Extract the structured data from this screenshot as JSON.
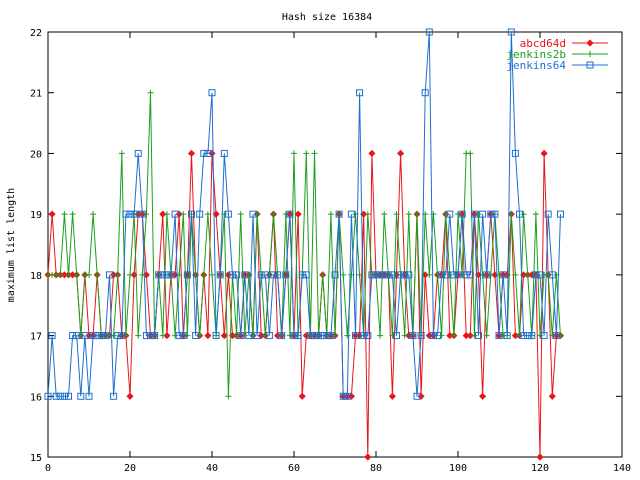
{
  "chart_data": {
    "type": "line",
    "title": "Hash size 16384",
    "xlabel": "",
    "ylabel": "maximum list length",
    "xlim": [
      0,
      140
    ],
    "ylim": [
      15,
      22
    ],
    "xticks": [
      0,
      20,
      40,
      60,
      80,
      100,
      120,
      140
    ],
    "yticks": [
      15,
      16,
      17,
      18,
      19,
      20,
      21,
      22
    ],
    "grid": false,
    "legend_position": "top-right",
    "series": [
      {
        "name": "abcd64d",
        "color": "#e8151b",
        "marker": "diamond",
        "x": [
          0,
          1,
          2,
          3,
          4,
          5,
          6,
          7,
          8,
          9,
          10,
          11,
          12,
          13,
          14,
          15,
          16,
          17,
          18,
          19,
          20,
          21,
          22,
          23,
          24,
          25,
          26,
          27,
          28,
          29,
          30,
          31,
          32,
          33,
          34,
          35,
          36,
          37,
          38,
          39,
          40,
          41,
          42,
          43,
          44,
          45,
          46,
          47,
          48,
          49,
          50,
          51,
          52,
          53,
          54,
          55,
          56,
          57,
          58,
          59,
          60,
          61,
          62,
          63,
          64,
          65,
          66,
          67,
          68,
          69,
          70,
          71,
          72,
          73,
          74,
          75,
          76,
          77,
          78,
          79,
          80,
          81,
          82,
          83,
          84,
          85,
          86,
          87,
          88,
          89,
          90,
          91,
          92,
          93,
          94,
          95,
          96,
          97,
          98,
          99,
          100,
          101,
          102,
          103,
          104,
          105,
          106,
          107,
          108,
          109,
          110,
          111,
          112,
          113,
          114,
          115,
          116,
          117,
          118,
          119,
          120,
          121,
          122,
          123,
          124,
          125
        ],
        "y": [
          18,
          19,
          18,
          18,
          18,
          18,
          18,
          18,
          17,
          18,
          17,
          17,
          18,
          17,
          17,
          17,
          18,
          18,
          17,
          17,
          16,
          18,
          19,
          19,
          18,
          17,
          17,
          18,
          19,
          17,
          18,
          18,
          19,
          17,
          18,
          20,
          18,
          17,
          18,
          17,
          20,
          19,
          18,
          17,
          18,
          17,
          17,
          17,
          18,
          18,
          17,
          19,
          17,
          17,
          18,
          19,
          17,
          17,
          18,
          19,
          17,
          19,
          16,
          17,
          17,
          17,
          17,
          18,
          17,
          17,
          17,
          19,
          16,
          16,
          16,
          17,
          17,
          19,
          15,
          20,
          18,
          18,
          18,
          18,
          16,
          18,
          20,
          18,
          17,
          17,
          19,
          16,
          18,
          17,
          17,
          18,
          18,
          19,
          17,
          17,
          18,
          19,
          17,
          17,
          19,
          18,
          16,
          18,
          19,
          18,
          17,
          18,
          18,
          19,
          17,
          17,
          18,
          18,
          18,
          18,
          15,
          20,
          18,
          16,
          17,
          17
        ]
      },
      {
        "name": "jenkins2b",
        "color": "#1b9e1b",
        "marker": "plus",
        "x": [
          0,
          1,
          2,
          3,
          4,
          5,
          6,
          7,
          8,
          9,
          10,
          11,
          12,
          13,
          14,
          15,
          16,
          17,
          18,
          19,
          20,
          21,
          22,
          23,
          24,
          25,
          26,
          27,
          28,
          29,
          30,
          31,
          32,
          33,
          34,
          35,
          36,
          37,
          38,
          39,
          40,
          41,
          42,
          43,
          44,
          45,
          46,
          47,
          48,
          49,
          50,
          51,
          52,
          53,
          54,
          55,
          56,
          57,
          58,
          59,
          60,
          61,
          62,
          63,
          64,
          65,
          66,
          67,
          68,
          69,
          70,
          71,
          72,
          73,
          74,
          75,
          76,
          77,
          78,
          79,
          80,
          81,
          82,
          83,
          84,
          85,
          86,
          87,
          88,
          89,
          90,
          91,
          92,
          93,
          94,
          95,
          96,
          97,
          98,
          99,
          100,
          101,
          102,
          103,
          104,
          105,
          106,
          107,
          108,
          109,
          110,
          111,
          112,
          113,
          114,
          115,
          116,
          117,
          118,
          119,
          120,
          121,
          122,
          123,
          124,
          125
        ],
        "y": [
          18,
          18,
          18,
          18,
          19,
          18,
          19,
          18,
          17,
          18,
          18,
          19,
          18,
          17,
          17,
          17,
          17,
          18,
          20,
          17,
          18,
          19,
          17,
          18,
          19,
          21,
          17,
          18,
          17,
          19,
          18,
          17,
          18,
          19,
          17,
          19,
          18,
          17,
          18,
          19,
          18,
          17,
          18,
          19,
          16,
          18,
          17,
          19,
          17,
          18,
          17,
          19,
          18,
          17,
          18,
          19,
          18,
          17,
          19,
          17,
          20,
          17,
          18,
          20,
          17,
          20,
          17,
          18,
          17,
          19,
          17,
          19,
          18,
          17,
          18,
          19,
          18,
          17,
          19,
          18,
          18,
          17,
          19,
          18,
          17,
          19,
          18,
          17,
          19,
          17,
          19,
          17,
          19,
          18,
          19,
          18,
          17,
          19,
          18,
          17,
          19,
          18,
          20,
          20,
          17,
          19,
          18,
          17,
          18,
          19,
          18,
          17,
          17,
          19,
          18,
          17,
          19,
          18,
          17,
          19,
          17,
          18,
          18,
          17,
          18,
          17
        ]
      },
      {
        "name": "jenkins64",
        "color": "#1f6fd1",
        "marker": "square",
        "x": [
          0,
          1,
          2,
          3,
          4,
          5,
          6,
          7,
          8,
          9,
          10,
          11,
          12,
          13,
          14,
          15,
          16,
          17,
          18,
          19,
          20,
          21,
          22,
          23,
          24,
          25,
          26,
          27,
          28,
          29,
          30,
          31,
          32,
          33,
          34,
          35,
          36,
          37,
          38,
          39,
          40,
          41,
          42,
          43,
          44,
          45,
          46,
          47,
          48,
          49,
          50,
          51,
          52,
          53,
          54,
          55,
          56,
          57,
          58,
          59,
          60,
          61,
          62,
          63,
          64,
          65,
          66,
          67,
          68,
          69,
          70,
          71,
          72,
          73,
          74,
          75,
          76,
          77,
          78,
          79,
          80,
          81,
          82,
          83,
          84,
          85,
          86,
          87,
          88,
          89,
          90,
          91,
          92,
          93,
          94,
          95,
          96,
          97,
          98,
          99,
          100,
          101,
          102,
          103,
          104,
          105,
          106,
          107,
          108,
          109,
          110,
          111,
          112,
          113,
          114,
          115,
          116,
          117,
          118,
          119,
          120,
          121,
          122,
          123,
          124,
          125
        ],
        "y": [
          16,
          17,
          16,
          16,
          16,
          16,
          17,
          17,
          16,
          17,
          16,
          17,
          17,
          17,
          17,
          18,
          16,
          17,
          17,
          19,
          19,
          19,
          20,
          19,
          17,
          17,
          17,
          18,
          18,
          18,
          18,
          19,
          17,
          17,
          18,
          19,
          17,
          19,
          20,
          20,
          21,
          17,
          18,
          20,
          19,
          18,
          18,
          17,
          18,
          17,
          19,
          17,
          18,
          18,
          17,
          18,
          18,
          17,
          18,
          19,
          17,
          17,
          18,
          18,
          17,
          17,
          17,
          17,
          17,
          17,
          18,
          19,
          16,
          16,
          19,
          17,
          21,
          17,
          17,
          18,
          18,
          18,
          18,
          18,
          18,
          17,
          18,
          18,
          18,
          17,
          16,
          17,
          21,
          22,
          17,
          17,
          18,
          18,
          19,
          18,
          18,
          19,
          18,
          18,
          19,
          17,
          19,
          18,
          19,
          19,
          17,
          18,
          17,
          22,
          20,
          19,
          17,
          17,
          17,
          18,
          18,
          17,
          19,
          18,
          17,
          19
        ]
      }
    ]
  }
}
